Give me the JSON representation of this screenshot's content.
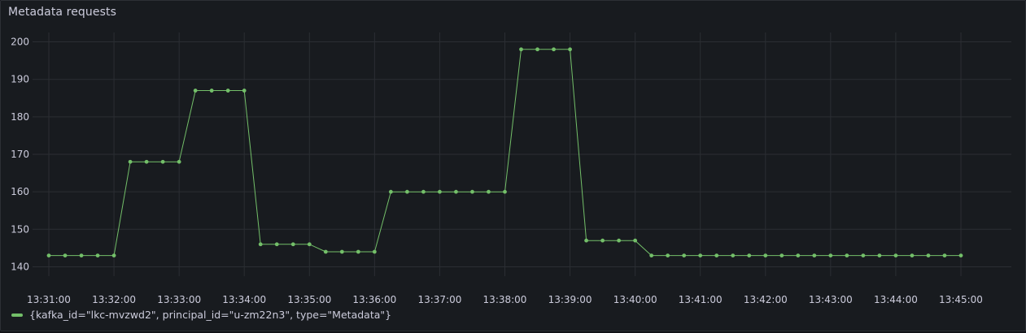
{
  "panel": {
    "title": "Metadata requests"
  },
  "chart_data": {
    "type": "line",
    "title": "Metadata requests",
    "xlabel": "",
    "ylabel": "",
    "x_ticks": [
      "13:31:00",
      "13:32:00",
      "13:33:00",
      "13:34:00",
      "13:35:00",
      "13:36:00",
      "13:37:00",
      "13:38:00",
      "13:39:00",
      "13:40:00",
      "13:41:00",
      "13:42:00",
      "13:43:00",
      "13:44:00",
      "13:45:00"
    ],
    "y_ticks": [
      140,
      150,
      160,
      170,
      180,
      190,
      200
    ],
    "ylim": [
      137.5,
      202.5
    ],
    "xlim": [
      "13:31:00",
      "13:45:00"
    ],
    "grid": true,
    "legend_position": "bottom-left",
    "series": [
      {
        "name": "{kafka_id=\"lkc-mvzwd2\", principal_id=\"u-zm22n3\", type=\"Metadata\"}",
        "color": "#73bf69",
        "x": [
          "13:31:00",
          "13:31:15",
          "13:31:30",
          "13:31:45",
          "13:32:00",
          "13:32:15",
          "13:32:30",
          "13:32:45",
          "13:33:00",
          "13:33:15",
          "13:33:30",
          "13:33:45",
          "13:34:00",
          "13:34:15",
          "13:34:30",
          "13:34:45",
          "13:35:00",
          "13:35:15",
          "13:35:30",
          "13:35:45",
          "13:36:00",
          "13:36:15",
          "13:36:30",
          "13:36:45",
          "13:37:00",
          "13:37:15",
          "13:37:30",
          "13:37:45",
          "13:38:00",
          "13:38:15",
          "13:38:30",
          "13:38:45",
          "13:39:00",
          "13:39:15",
          "13:39:30",
          "13:39:45",
          "13:40:00",
          "13:40:15",
          "13:40:30",
          "13:40:45",
          "13:41:00",
          "13:41:15",
          "13:41:30",
          "13:41:45",
          "13:42:00",
          "13:42:15",
          "13:42:30",
          "13:42:45",
          "13:43:00",
          "13:43:15",
          "13:43:30",
          "13:43:45",
          "13:44:00",
          "13:44:15",
          "13:44:30",
          "13:44:45",
          "13:45:00"
        ],
        "values": [
          143,
          143,
          143,
          143,
          143,
          168,
          168,
          168,
          168,
          187,
          187,
          187,
          187,
          146,
          146,
          146,
          146,
          144,
          144,
          144,
          144,
          160,
          160,
          160,
          160,
          160,
          160,
          160,
          160,
          198,
          198,
          198,
          198,
          147,
          147,
          147,
          147,
          143,
          143,
          143,
          143,
          143,
          143,
          143,
          143,
          143,
          143,
          143,
          143,
          143,
          143,
          143,
          143,
          143,
          143,
          143,
          143
        ]
      }
    ]
  }
}
